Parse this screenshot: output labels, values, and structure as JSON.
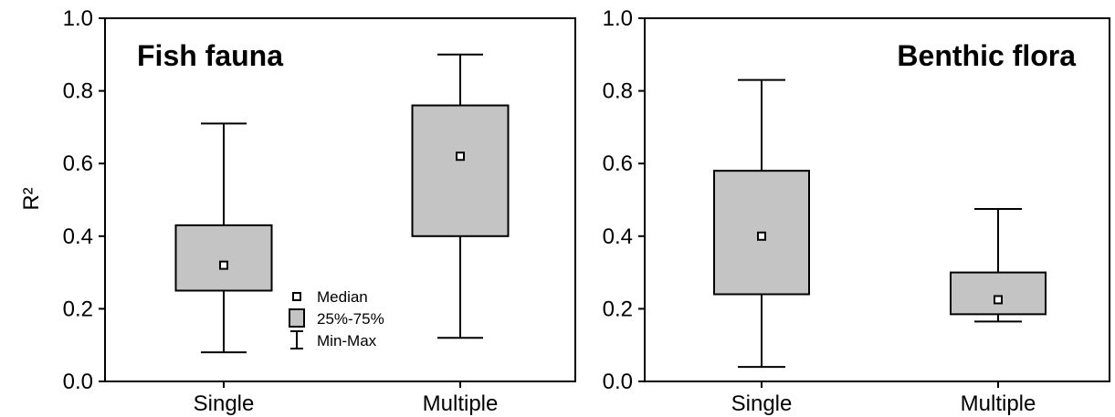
{
  "chart_data": [
    {
      "type": "box",
      "title": "Fish fauna",
      "title_position": "top-left",
      "xlabel": "",
      "ylabel": "R²",
      "ylim": [
        0.0,
        1.0
      ],
      "yticks": [
        "0.0",
        "0.2",
        "0.4",
        "0.6",
        "0.8",
        "1.0"
      ],
      "grid": false,
      "categories": [
        "Single",
        "Multiple"
      ],
      "boxes": [
        {
          "category": "Single",
          "min": 0.08,
          "q1": 0.25,
          "median": 0.32,
          "q3": 0.43,
          "max": 0.71
        },
        {
          "category": "Multiple",
          "min": 0.12,
          "q1": 0.4,
          "median": 0.62,
          "q3": 0.76,
          "max": 0.9
        }
      ],
      "legend": {
        "placement": "bottom-center",
        "items": [
          {
            "symbol": "median-marker",
            "label": "Median"
          },
          {
            "symbol": "box",
            "label": "25%-75%"
          },
          {
            "symbol": "whisker",
            "label": "Min-Max"
          }
        ]
      }
    },
    {
      "type": "box",
      "title": "Benthic flora",
      "title_position": "top-right",
      "xlabel": "",
      "ylabel": "",
      "ylim": [
        0.0,
        1.0
      ],
      "yticks": [
        "0.0",
        "0.2",
        "0.4",
        "0.6",
        "0.8",
        "1.0"
      ],
      "grid": false,
      "categories": [
        "Single",
        "Multiple"
      ],
      "boxes": [
        {
          "category": "Single",
          "min": 0.04,
          "q1": 0.24,
          "median": 0.4,
          "q3": 0.58,
          "max": 0.83
        },
        {
          "category": "Multiple",
          "min": 0.165,
          "q1": 0.185,
          "median": 0.225,
          "q3": 0.3,
          "max": 0.475
        }
      ]
    }
  ],
  "colors": {
    "box_fill": "#c4c4c4",
    "stroke": "#000000",
    "median_fill": "#ffffff",
    "background": "#ffffff"
  }
}
